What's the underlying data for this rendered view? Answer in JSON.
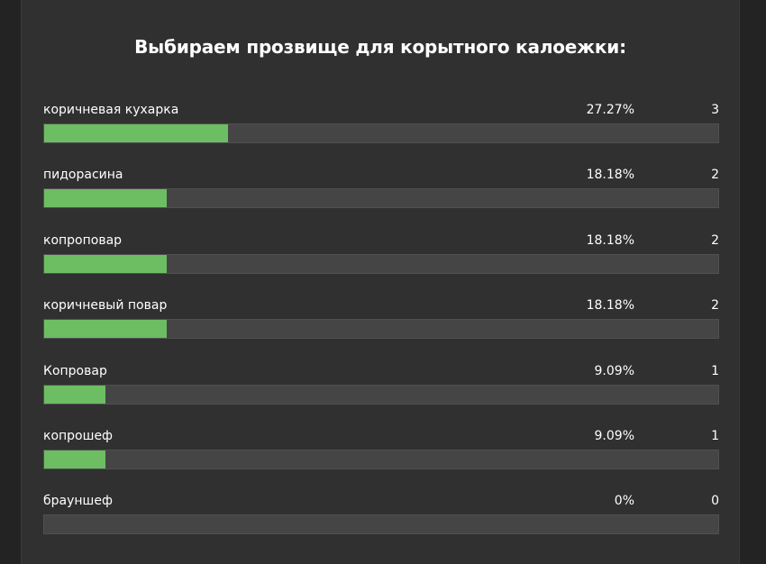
{
  "poll": {
    "title": "Выбираем прозвище для корытного калоежки:",
    "fill_color": "#6dbd63",
    "options": [
      {
        "label": "коричневая кухарка",
        "percent": "27.27%",
        "votes": "3",
        "fraction": 0.2727
      },
      {
        "label": "пидорасина",
        "percent": "18.18%",
        "votes": "2",
        "fraction": 0.1818
      },
      {
        "label": "копроповар",
        "percent": "18.18%",
        "votes": "2",
        "fraction": 0.1818
      },
      {
        "label": "коричневый повар",
        "percent": "18.18%",
        "votes": "2",
        "fraction": 0.1818
      },
      {
        "label": "Копровар",
        "percent": "9.09%",
        "votes": "1",
        "fraction": 0.0909
      },
      {
        "label": "копрошеф",
        "percent": "9.09%",
        "votes": "1",
        "fraction": 0.0909
      },
      {
        "label": "брауншеф",
        "percent": "0%",
        "votes": "0",
        "fraction": 0
      }
    ]
  }
}
